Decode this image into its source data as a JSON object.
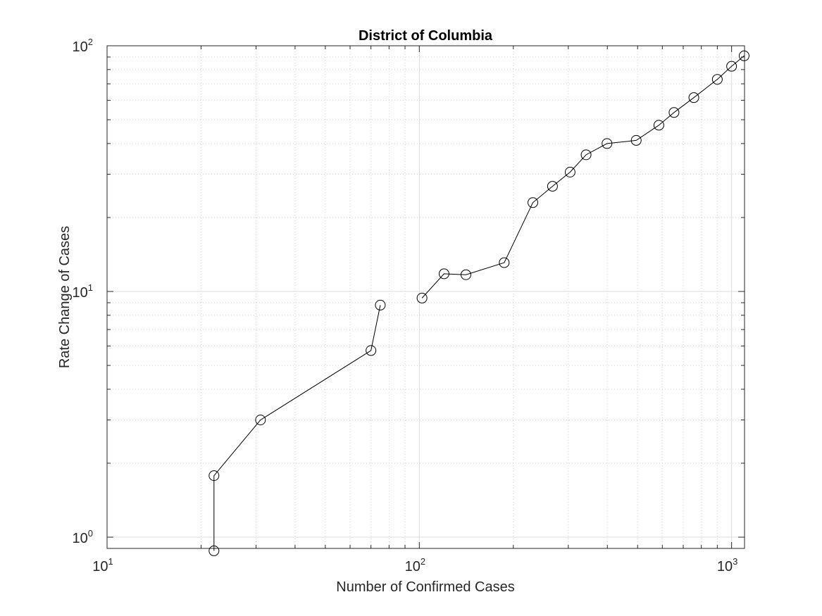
{
  "chart_data": {
    "type": "line",
    "title": "District of Columbia",
    "xlabel": "Number of Confirmed Cases",
    "ylabel": "Rate Change of Cases",
    "x_scale": "log",
    "y_scale": "log",
    "xlim": [
      10,
      1100
    ],
    "ylim": [
      0.9,
      100
    ],
    "grid": true,
    "minor_grid": true,
    "x_ticks": [
      {
        "base": "10",
        "exp": "1",
        "value": 10
      },
      {
        "base": "10",
        "exp": "2",
        "value": 100
      },
      {
        "base": "10",
        "exp": "3",
        "value": 1000
      }
    ],
    "y_ticks": [
      {
        "base": "10",
        "exp": "0",
        "value": 1
      },
      {
        "base": "10",
        "exp": "1",
        "value": 10
      },
      {
        "base": "10",
        "exp": "2",
        "value": 100
      }
    ],
    "line_color": "#000000",
    "marker": "open-circle",
    "series": [
      {
        "segments": [
          [
            {
              "x": 22,
              "y": 0.88
            },
            {
              "x": 22,
              "y": 1.78
            },
            {
              "x": 31,
              "y": 3.0
            },
            {
              "x": 70,
              "y": 5.75
            },
            {
              "x": 75,
              "y": 8.8
            }
          ],
          [
            {
              "x": 102,
              "y": 9.4
            },
            {
              "x": 120,
              "y": 11.8
            },
            {
              "x": 141,
              "y": 11.7
            },
            {
              "x": 187,
              "y": 13.1
            },
            {
              "x": 231,
              "y": 23.0
            },
            {
              "x": 267,
              "y": 26.8
            },
            {
              "x": 304,
              "y": 30.6
            },
            {
              "x": 342,
              "y": 36.0
            },
            {
              "x": 399,
              "y": 40.0
            },
            {
              "x": 495,
              "y": 41.2
            },
            {
              "x": 585,
              "y": 47.5
            },
            {
              "x": 654,
              "y": 53.5
            },
            {
              "x": 757,
              "y": 61.5
            },
            {
              "x": 900,
              "y": 73.0
            },
            {
              "x": 1000,
              "y": 82.5
            },
            {
              "x": 1097,
              "y": 91.0
            }
          ]
        ]
      }
    ]
  }
}
